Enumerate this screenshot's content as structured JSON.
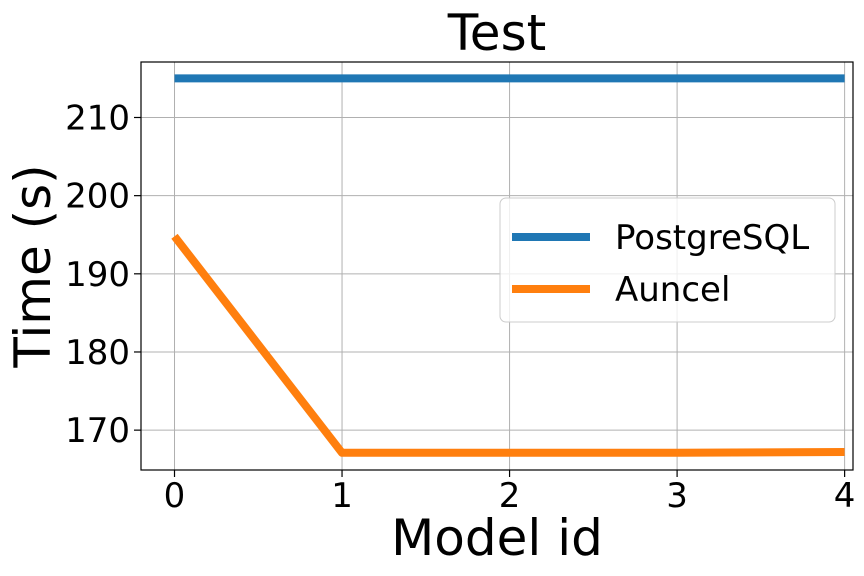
{
  "chart_data": {
    "type": "line",
    "title": "Test",
    "xlabel": "Model id",
    "ylabel": "Time (s)",
    "x": [
      0,
      1,
      2,
      3,
      4
    ],
    "xticks": [
      "0",
      "1",
      "2",
      "3",
      "4"
    ],
    "yticks": [
      "170",
      "180",
      "190",
      "200",
      "210"
    ],
    "ytick_values": [
      170,
      180,
      190,
      200,
      210
    ],
    "xlim": [
      -0.2,
      4.05
    ],
    "ylim": [
      164.9,
      217.1
    ],
    "grid": true,
    "legend_position": "center-right",
    "series": [
      {
        "name": "PostgreSQL",
        "color": "#1f77b4",
        "values": [
          215,
          215,
          215,
          215,
          215
        ]
      },
      {
        "name": "Auncel",
        "color": "#ff7f0e",
        "values": [
          194.8,
          167.1,
          167.1,
          167.1,
          167.2
        ]
      }
    ]
  }
}
